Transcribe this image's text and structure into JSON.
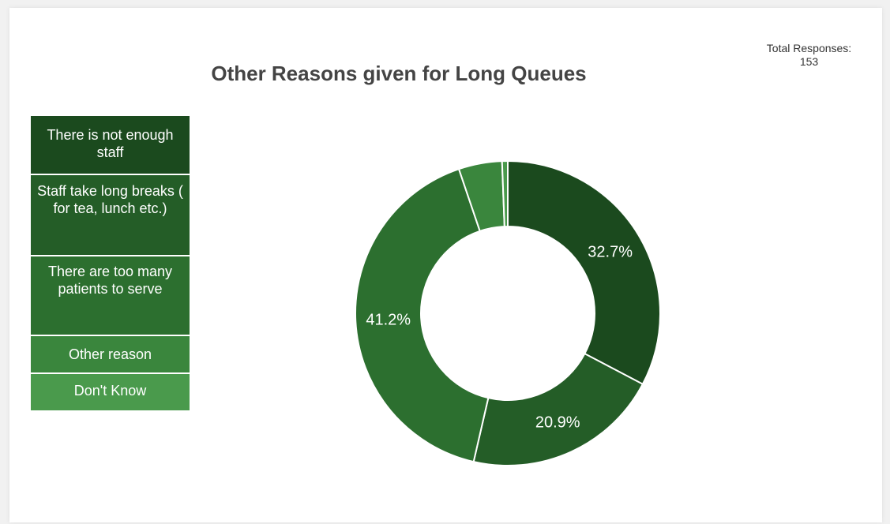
{
  "title": "Other Reasons given for Long Queues",
  "total": {
    "label": "Total Responses:",
    "value": "153"
  },
  "chart_data": {
    "type": "pie",
    "title": "Other Reasons given for Long Queues",
    "donut": true,
    "legend_position": "left",
    "categories": [
      "There is not enough staff",
      "Staff take long breaks ( for tea, lunch etc.)",
      "There are too many patients to serve",
      "Other reason",
      "Don't Know"
    ],
    "values": [
      32.7,
      20.9,
      41.2,
      4.6,
      0.6
    ],
    "data_labels": [
      "32.7%",
      "20.9%",
      "41.2%",
      "",
      ""
    ],
    "colors": [
      "#1b4a1e",
      "#245d27",
      "#2c6f2f",
      "#3a863d",
      "#4a9a4c"
    ]
  }
}
